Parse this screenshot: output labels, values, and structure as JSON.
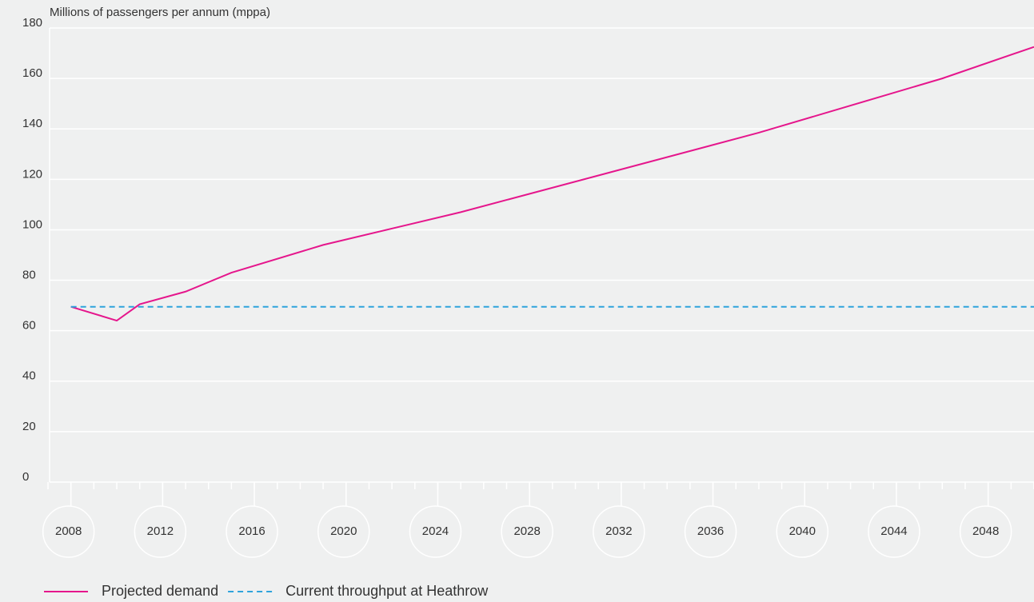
{
  "chart_data": {
    "type": "line",
    "y_axis_label": "Millions of passengers per annum (mppa)",
    "ylim": [
      0,
      180
    ],
    "yticks": [
      0,
      20,
      40,
      60,
      80,
      100,
      120,
      140,
      160,
      180
    ],
    "xlim": [
      2007,
      2050
    ],
    "xticks": [
      2008,
      2012,
      2016,
      2020,
      2024,
      2028,
      2032,
      2036,
      2040,
      2044,
      2048
    ],
    "xminorticks": [
      2007,
      2008,
      2009,
      2010,
      2011,
      2012,
      2013,
      2014,
      2015,
      2016,
      2017,
      2018,
      2019,
      2020,
      2021,
      2022,
      2023,
      2024,
      2025,
      2026,
      2027,
      2028,
      2029,
      2030,
      2031,
      2032,
      2033,
      2034,
      2035,
      2036,
      2037,
      2038,
      2039,
      2040,
      2041,
      2042,
      2043,
      2044,
      2045,
      2046,
      2047,
      2048,
      2049,
      2050
    ],
    "grid": true,
    "series": [
      {
        "name": "Projected demand",
        "color": "#e5168c",
        "dash": false,
        "x": [
          2008,
          2010,
          2011,
          2013,
          2015,
          2019,
          2025,
          2038,
          2046,
          2050
        ],
        "values": [
          69.5,
          64,
          70.5,
          75.5,
          83,
          94,
          107,
          138.5,
          160,
          172.5
        ]
      },
      {
        "name": "Current throughput at Heathrow",
        "color": "#2ea3dc",
        "dash": true,
        "x": [
          2008,
          2050
        ],
        "values": [
          69.5,
          69.5
        ]
      }
    ]
  }
}
